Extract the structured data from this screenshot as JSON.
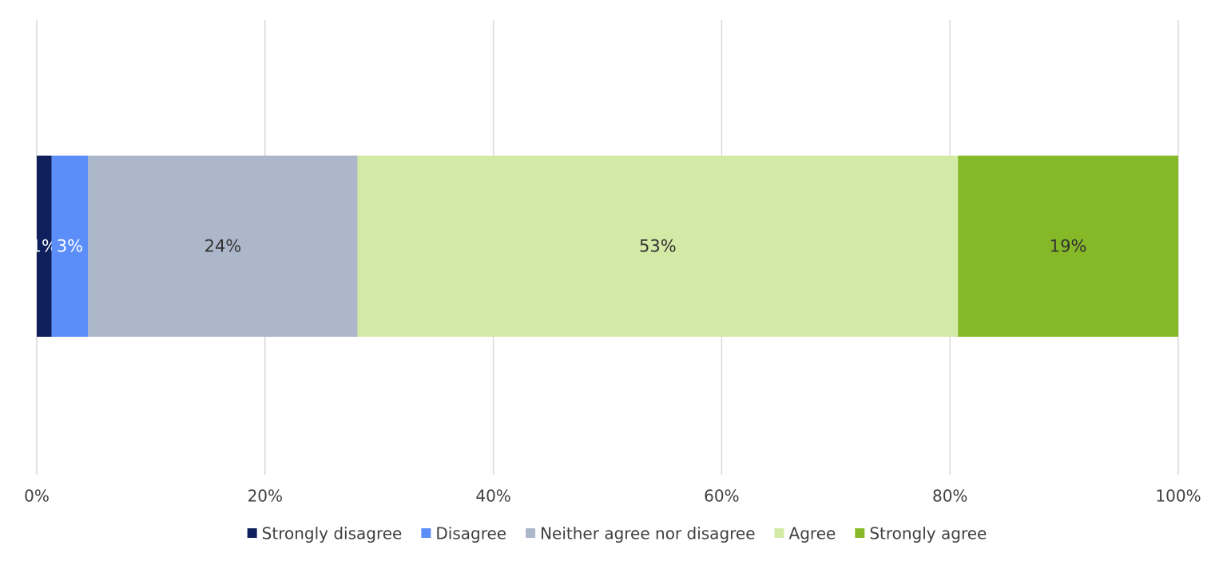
{
  "chart_data": {
    "type": "bar",
    "orientation": "horizontal",
    "stacked": true,
    "series": [
      {
        "name": "Strongly disagree",
        "color": "#0e1f5b",
        "values": [
          1.3
        ],
        "value_labels": [
          "1%"
        ]
      },
      {
        "name": "Disagree",
        "color": "#5b8ef8",
        "values": [
          3.2
        ],
        "value_labels": [
          "3%"
        ]
      },
      {
        "name": "Neither agree nor disagree",
        "color": "#acb8ca",
        "values": [
          23.6
        ],
        "value_labels": [
          "24%"
        ]
      },
      {
        "name": "Agree",
        "color": "#d3eaa6",
        "values": [
          52.6
        ],
        "value_labels": [
          "53%"
        ]
      },
      {
        "name": "Strongly agree",
        "color": "#86b928",
        "values": [
          19.3
        ],
        "value_labels": [
          "19%"
        ]
      }
    ],
    "xlim": [
      0,
      100
    ],
    "xticks": [
      {
        "value": 0,
        "label": "0%"
      },
      {
        "value": 20,
        "label": "20%"
      },
      {
        "value": 40,
        "label": "40%"
      },
      {
        "value": 60,
        "label": "60%"
      },
      {
        "value": 80,
        "label": "80%"
      },
      {
        "value": 100,
        "label": "100%"
      }
    ],
    "grid": true,
    "legend": "bottom"
  }
}
